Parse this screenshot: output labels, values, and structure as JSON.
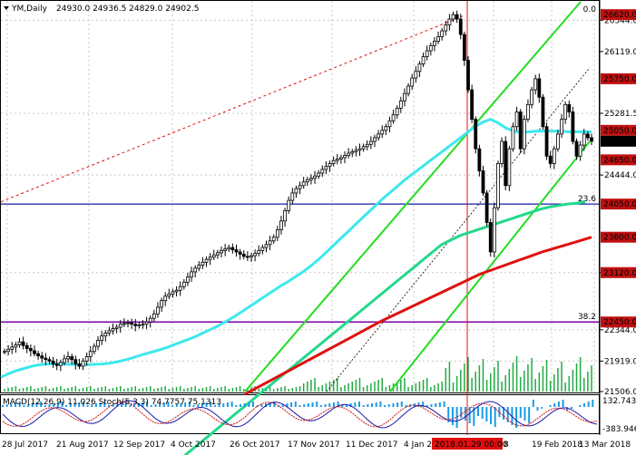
{
  "header": {
    "symbol": "YM,Daily",
    "ohlc": "24930.0 24936.5 24829.0 24902.5"
  },
  "colors": {
    "background": "#ffffff",
    "grid": "#c8c8c8",
    "candle": "#000000",
    "ema_fast": "#3de8ee",
    "ema_mid": "#22d98a",
    "ema_slow": "#e01010",
    "channel": "#22dd22",
    "fib_line": "#1a1aa8",
    "fib_line_low": "#7a00a8",
    "volume": "#22aa44",
    "macd_hist": "#1a9be8",
    "stoch_main": "#1a1aa8",
    "stoch_signal": "#d01010",
    "event_line": "#e01010",
    "price_tag": "#000000",
    "level_tag": "#c01010"
  },
  "chart_data": {
    "type": "candlestick",
    "price_axis": {
      "min": 21506.0,
      "max": 26794.0,
      "tick_labels": [
        "26544.0",
        "26119.0",
        "25281.5",
        "24444.0",
        "23120.0",
        "22344.0",
        "21919.0",
        "21506.0"
      ],
      "tick_values": [
        26544.0,
        26119.0,
        25281.5,
        24444.0,
        23120.0,
        22344.0,
        21919.0,
        21506.0
      ]
    },
    "level_tags": [
      {
        "label": "26620.0",
        "value": 26620.0
      },
      {
        "label": "25750.0",
        "value": 25750.0
      },
      {
        "label": "25050.0",
        "value": 25050.0
      },
      {
        "label": "24650.0",
        "value": 24650.0
      },
      {
        "label": "24050.0",
        "value": 24050.0
      },
      {
        "label": "23600.0",
        "value": 23600.0
      },
      {
        "label": "23120.0",
        "value": 23120.0
      },
      {
        "label": "22450.0",
        "value": 22450.0
      }
    ],
    "current_price": {
      "label": "24902.5",
      "value": 24902.5
    },
    "fib_levels": [
      {
        "label": "0.0",
        "value": 26620.0
      },
      {
        "label": "23.6",
        "value": 24050.0
      },
      {
        "label": "38.2",
        "value": 22450.0
      }
    ],
    "x_labels": [
      "28 Jul 2017",
      "21 Aug 2017",
      "12 Sep 2017",
      "4 Oct 2017",
      "26 Oct 2017",
      "17 Nov 2017",
      "11 Dec 2017",
      "4 Jan 2",
      "2018.01.29 00:00",
      "8",
      "19 Feb 2018",
      "13 Mar 2018"
    ],
    "event_marker": "2018.01.29 00:00",
    "close_series": [
      22050,
      22080,
      22110,
      22140,
      22180,
      22130,
      22090,
      22060,
      22020,
      21990,
      21960,
      21940,
      21920,
      21880,
      21860,
      21900,
      21950,
      21980,
      21940,
      21880,
      21850,
      21920,
      21980,
      22050,
      22120,
      22200,
      22260,
      22300,
      22330,
      22360,
      22380,
      22420,
      22430,
      22440,
      22420,
      22400,
      22410,
      22420,
      22450,
      22500,
      22560,
      22650,
      22740,
      22800,
      22830,
      22860,
      22880,
      22930,
      22990,
      23060,
      23130,
      23180,
      23220,
      23260,
      23300,
      23330,
      23360,
      23390,
      23420,
      23440,
      23460,
      23430,
      23400,
      23370,
      23340,
      23330,
      23350,
      23380,
      23420,
      23460,
      23500,
      23550,
      23600,
      23700,
      23820,
      23960,
      24100,
      24200,
      24260,
      24300,
      24350,
      24380,
      24400,
      24430,
      24470,
      24520,
      24560,
      24600,
      24640,
      24660,
      24680,
      24710,
      24740,
      24760,
      24780,
      24800,
      24830,
      24860,
      24900,
      24950,
      25000,
      25050,
      25100,
      25180,
      25260,
      25350,
      25450,
      25550,
      25650,
      25760,
      25850,
      25950,
      26050,
      26130,
      26200,
      26260,
      26320,
      26400,
      26480,
      26560,
      26620,
      26560,
      26350,
      26000,
      25600,
      25200,
      24800,
      24500,
      24200,
      23800,
      23400,
      24000,
      24600,
      24900,
      24300,
      24800,
      25100,
      25300,
      24800,
      25200,
      25400,
      25600,
      25750,
      25500,
      25100,
      24700,
      24600,
      24800,
      25000,
      25200,
      25400,
      25300,
      24900,
      24700,
      24850,
      25000,
      24950,
      24902.5
    ],
    "ema_fast": [
      21700,
      21750,
      21790,
      21820,
      21850,
      21870,
      21880,
      21885,
      21880,
      21875,
      21870,
      21870,
      21875,
      21880,
      21890,
      21910,
      21935,
      21965,
      22000,
      22030,
      22060,
      22090,
      22130,
      22170,
      22210,
      22250,
      22300,
      22350,
      22400,
      22460,
      22520,
      22590,
      22660,
      22730,
      22800,
      22870,
      22940,
      23000,
      23070,
      23140,
      23220,
      23310,
      23410,
      23510,
      23610,
      23710,
      23810,
      23910,
      24010,
      24110,
      24200,
      24290,
      24380,
      24460,
      24540,
      24620,
      24700,
      24780,
      24860,
      24940,
      25020,
      25100,
      25160,
      25200,
      25150,
      25080,
      25040,
      25020,
      25030,
      25040,
      25040,
      25040,
      25040,
      25030,
      25030,
      25030,
      25030
    ],
    "ema_mid": [
      20400,
      20500,
      20600,
      20700,
      20800,
      20900,
      21000,
      21100,
      21200,
      21300,
      21400,
      21500,
      21600,
      21700,
      21800,
      21900,
      22000,
      22100,
      22200,
      22300,
      22400,
      22500,
      22600,
      22700,
      22800,
      22900,
      23000,
      23100,
      23200,
      23300,
      23400,
      23500,
      23560,
      23620,
      23660,
      23700,
      23740,
      23780,
      23820,
      23860,
      23900,
      23940,
      23980,
      24010,
      24030,
      24050,
      24060,
      24080
    ],
    "ema_slow": [
      21470,
      21560,
      21650,
      21740,
      21830,
      21920,
      22010,
      22100,
      22190,
      22280,
      22370,
      22460,
      22540,
      22620,
      22700,
      22780,
      22860,
      22940,
      23020,
      23100,
      23160,
      23220,
      23280,
      23340,
      23400,
      23450,
      23500,
      23550,
      23600
    ],
    "indicators": {
      "label": "MACD(12,26,9) 11.026 Stoch(5,3,3) 74.7757 75.1313",
      "right_top": "132.743",
      "right_bottom": "-383.946"
    }
  }
}
